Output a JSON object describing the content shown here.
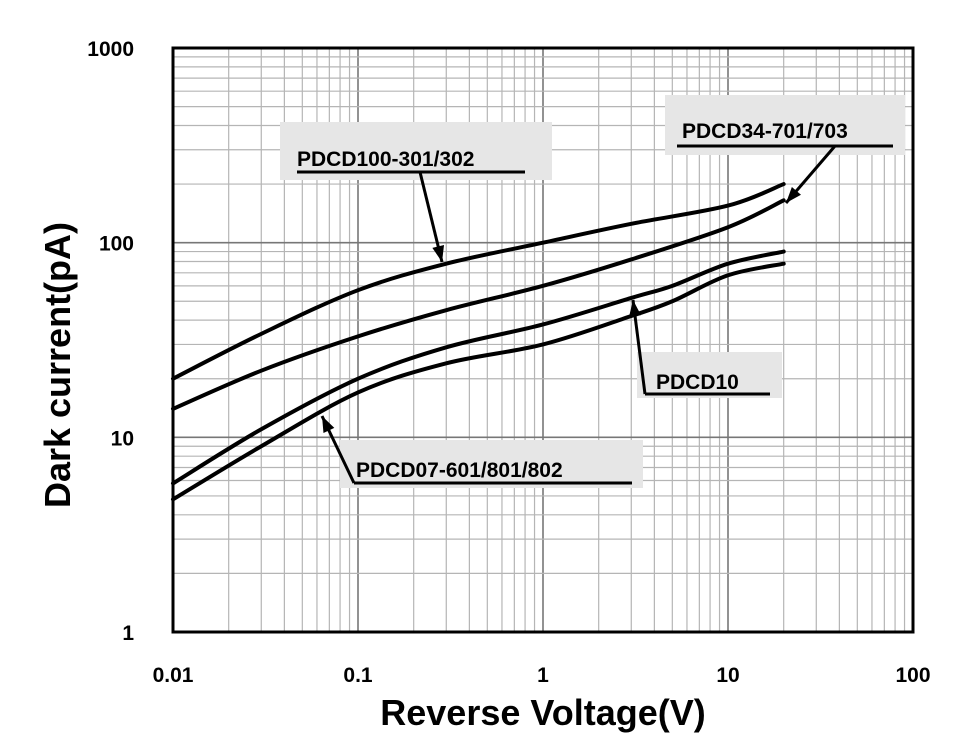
{
  "chart_data": {
    "type": "line",
    "title": "",
    "xlabel": "Reverse Voltage(V)",
    "ylabel": "Dark current(pA)",
    "xscale": "log",
    "yscale": "log",
    "xlim": [
      0.01,
      100
    ],
    "ylim": [
      1,
      1000
    ],
    "grid": true,
    "x_ticks": [
      "0.01",
      "0.1",
      "1",
      "10",
      "100"
    ],
    "y_ticks": [
      "1",
      "10",
      "100",
      "1000"
    ],
    "series": [
      {
        "name": "PDCD100-301/302",
        "x": [
          0.01,
          0.03,
          0.1,
          0.3,
          1,
          3,
          10,
          20
        ],
        "y": [
          20,
          34,
          57,
          78,
          100,
          125,
          155,
          200
        ]
      },
      {
        "name": "PDCD34-701/703",
        "x": [
          0.01,
          0.03,
          0.1,
          0.3,
          1,
          3,
          10,
          20
        ],
        "y": [
          14,
          22,
          33,
          45,
          60,
          82,
          120,
          165
        ]
      },
      {
        "name": "PDCD10",
        "x": [
          0.01,
          0.03,
          0.1,
          0.3,
          1,
          3,
          5,
          10,
          20
        ],
        "y": [
          5.8,
          11,
          20,
          29,
          38,
          52,
          60,
          78,
          90
        ]
      },
      {
        "name": "PDCD07-601/801/802",
        "x": [
          0.01,
          0.03,
          0.1,
          0.3,
          1,
          3,
          5,
          10,
          20
        ],
        "y": [
          4.8,
          9,
          17,
          24,
          30,
          42,
          50,
          68,
          78
        ]
      }
    ],
    "annotations": [
      "PDCD100-301/302",
      "PDCD34-701/703",
      "PDCD10",
      "PDCD07-601/801/802"
    ]
  }
}
